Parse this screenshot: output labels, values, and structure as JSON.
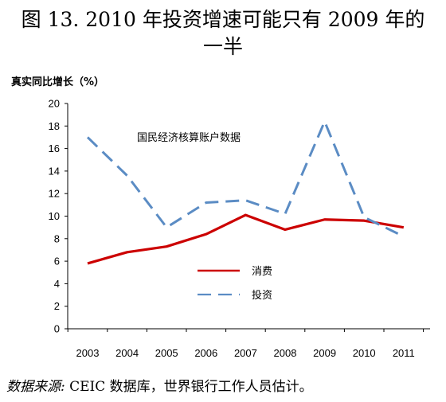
{
  "title_line1": "图 13. 2010 年投资增速可能只有 2009 年的",
  "title_line2": "一半",
  "source_label": "数据来源:",
  "source_text": " CEIC 数据库，世界银行工作人员估计。",
  "chart_data": {
    "type": "line",
    "title": "图 13. 2010 年投资增速可能只有 2009 年的一半",
    "ylabel": "真实同比增长（%）",
    "annotation": "国民经济核算账户数据",
    "x": [
      "2003",
      "2004",
      "2005",
      "2006",
      "2007",
      "2008",
      "2009",
      "2010",
      "2011"
    ],
    "ylim": [
      0,
      20
    ],
    "yticks": [
      "0",
      "2",
      "4",
      "6",
      "8",
      "10",
      "12",
      "14",
      "16",
      "18",
      "20"
    ],
    "grid": false,
    "legend_position": "center-left",
    "series": [
      {
        "name": "消费",
        "color": "#cc0000",
        "style": "solid",
        "values": [
          5.8,
          6.8,
          7.3,
          8.4,
          10.1,
          8.8,
          9.7,
          9.6,
          9.0
        ]
      },
      {
        "name": "投资",
        "color": "#5b8cc4",
        "style": "dashed",
        "values": [
          17.0,
          13.6,
          9.0,
          11.2,
          11.4,
          10.2,
          18.4,
          9.9,
          8.2
        ]
      }
    ]
  }
}
